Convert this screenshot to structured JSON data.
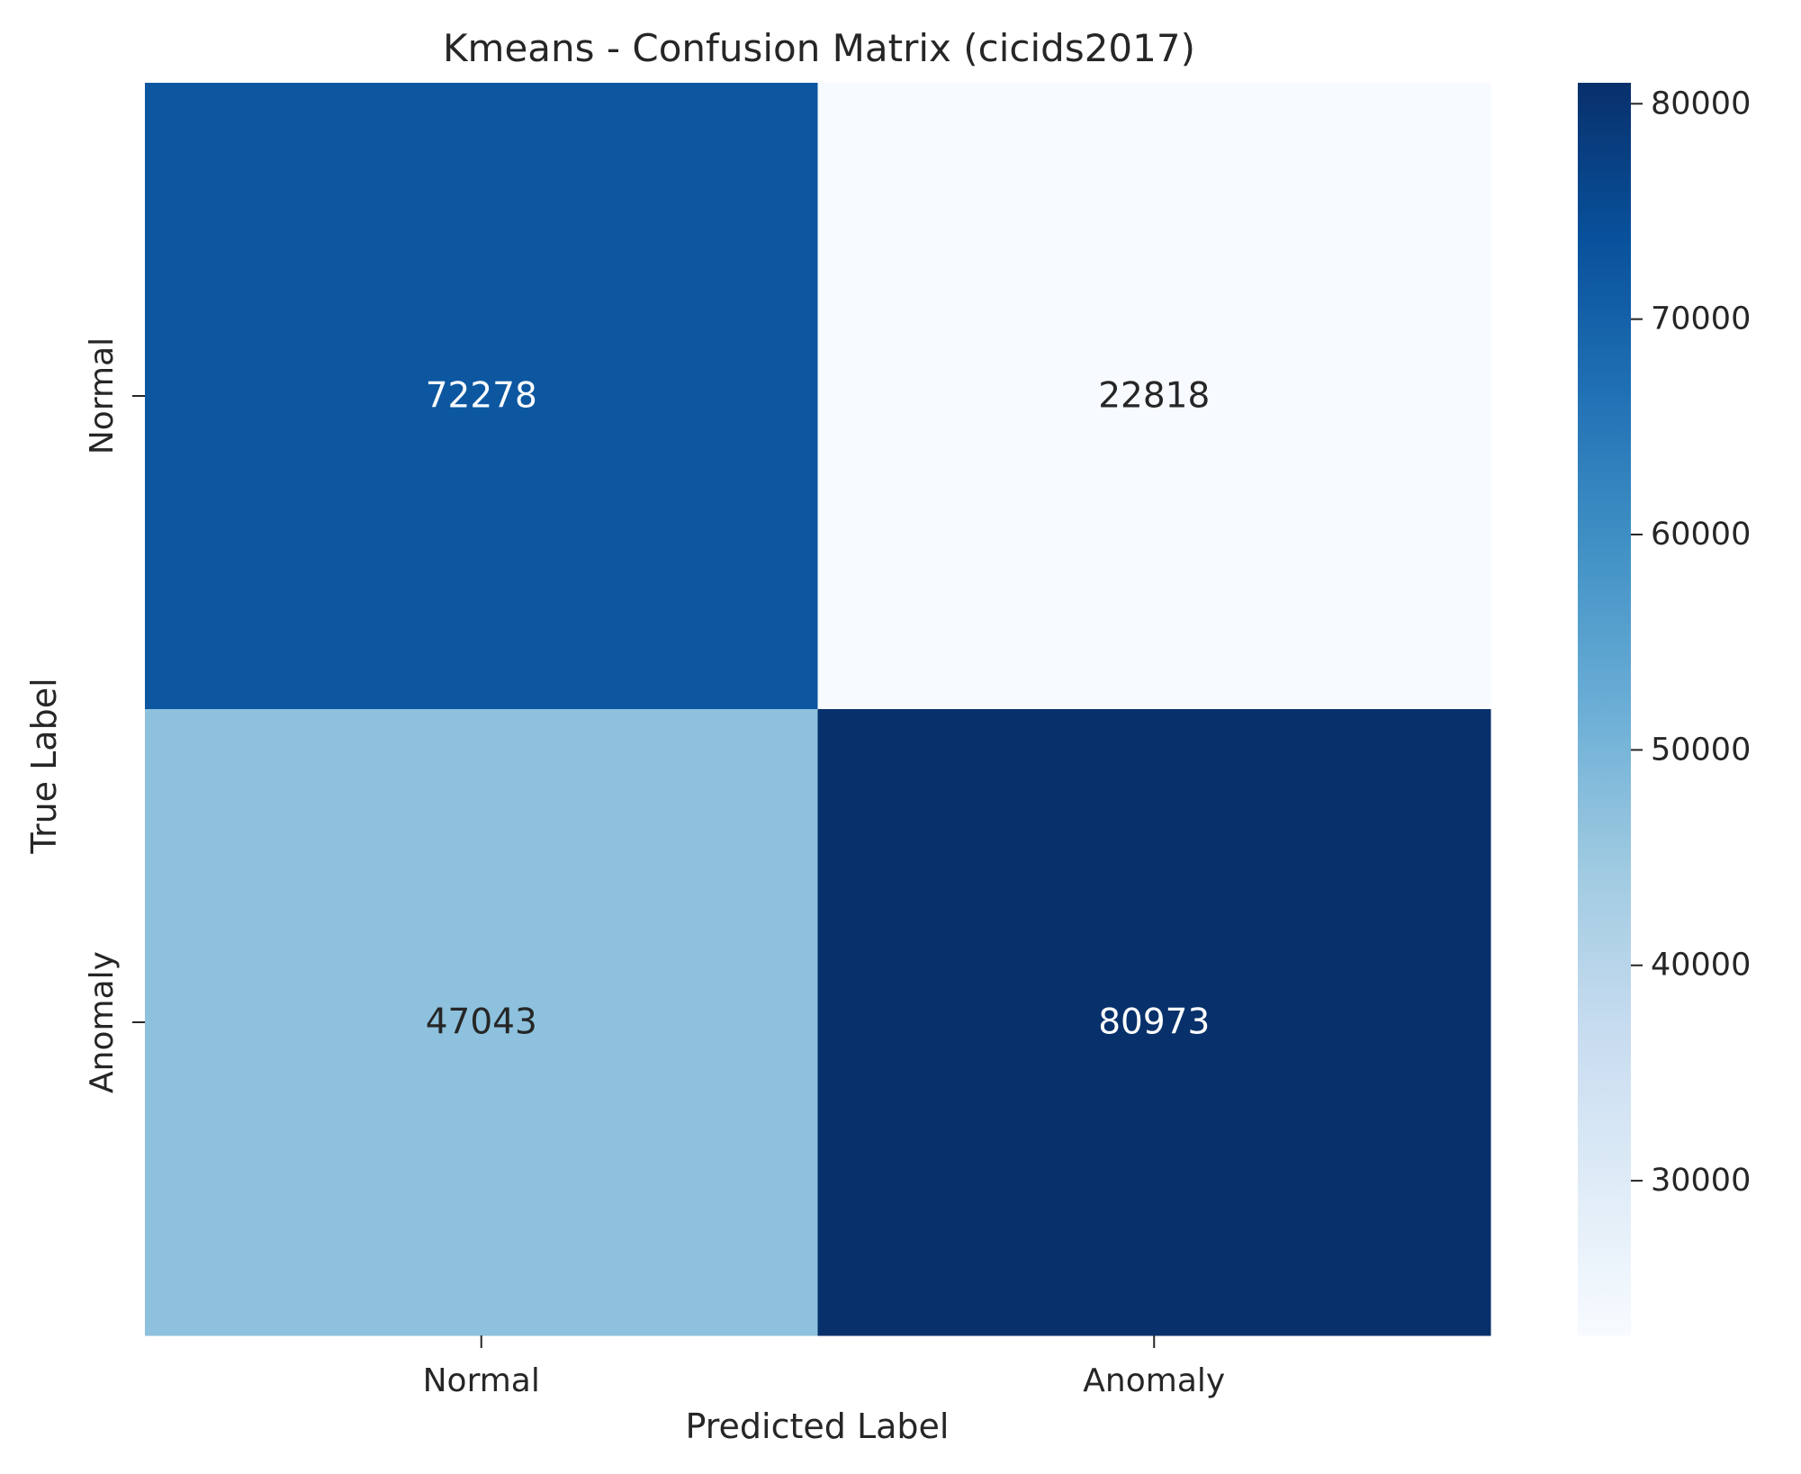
{
  "chart_data": {
    "type": "heatmap",
    "title": "Kmeans - Confusion Matrix (cicids2017)",
    "xlabel": "Predicted Label",
    "ylabel": "True Label",
    "x_categories": [
      "Normal",
      "Anomaly"
    ],
    "y_categories": [
      "Normal",
      "Anomaly"
    ],
    "values": [
      [
        72278,
        22818
      ],
      [
        47043,
        80973
      ]
    ],
    "colormap": "Blues",
    "color_scale": {
      "min": 22818,
      "max": 80973,
      "ticks": [
        30000,
        40000,
        50000,
        60000,
        70000,
        80000
      ]
    },
    "annotation_colors": {
      "light": "#ffffff",
      "dark": "#262626"
    }
  }
}
